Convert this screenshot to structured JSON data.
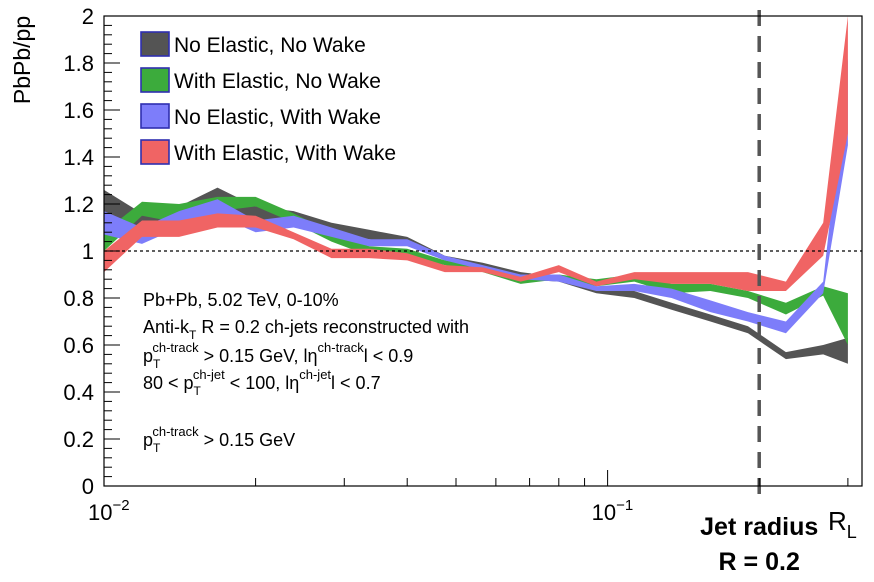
{
  "chart_data": {
    "type": "area",
    "title": "",
    "ylabel": "PbPb/pp",
    "xlabel_text": "R",
    "xlabel_sub": "L",
    "xscale": "log",
    "xlim": [
      0.01,
      0.32
    ],
    "ylim": [
      0,
      2
    ],
    "x_tick_labels": [
      {
        "value": 0.01,
        "base": "10",
        "exp": "−2"
      },
      {
        "value": 0.1,
        "base": "10",
        "exp": "−1"
      }
    ],
    "y_tick_labels": [
      "0",
      "0.2",
      "0.4",
      "0.6",
      "0.8",
      "1",
      "1.2",
      "1.4",
      "1.6",
      "1.8",
      "2"
    ],
    "y_tick_values": [
      0,
      0.2,
      0.4,
      0.6,
      0.8,
      1,
      1.2,
      1.4,
      1.6,
      1.8,
      2
    ],
    "reference_line": {
      "y": 1,
      "style": "dotted"
    },
    "jet_radius_line": {
      "x": 0.2,
      "label_line1": "Jet radius",
      "label_line2": "R = 0.2"
    },
    "x": [
      0.01,
      0.0119,
      0.0141,
      0.0168,
      0.02,
      0.0238,
      0.0283,
      0.0336,
      0.04,
      0.0475,
      0.0565,
      0.0672,
      0.08,
      0.095,
      0.113,
      0.134,
      0.16,
      0.19,
      0.226,
      0.268,
      0.3
    ],
    "series": [
      {
        "name": "No Elastic, No Wake",
        "color": "#545454",
        "low": [
          1.16,
          1.1,
          1.13,
          1.17,
          1.12,
          1.13,
          1.08,
          1.05,
          1.03,
          0.96,
          0.93,
          0.88,
          0.87,
          0.82,
          0.8,
          0.75,
          0.7,
          0.65,
          0.54,
          0.56,
          0.52
        ],
        "high": [
          1.26,
          1.16,
          1.19,
          1.27,
          1.19,
          1.17,
          1.12,
          1.09,
          1.06,
          0.98,
          0.95,
          0.91,
          0.89,
          0.84,
          0.83,
          0.78,
          0.73,
          0.68,
          0.57,
          0.6,
          0.63
        ]
      },
      {
        "name": "With Elastic, No Wake",
        "color": "#3cab3c",
        "low": [
          1.0,
          1.15,
          1.12,
          1.17,
          1.19,
          1.12,
          1.04,
          0.98,
          0.98,
          0.94,
          0.91,
          0.86,
          0.88,
          0.85,
          0.87,
          0.82,
          0.83,
          0.8,
          0.73,
          0.81,
          0.6
        ],
        "high": [
          1.08,
          1.21,
          1.2,
          1.23,
          1.23,
          1.16,
          1.08,
          1.02,
          1.01,
          0.96,
          0.93,
          0.88,
          0.9,
          0.88,
          0.9,
          0.86,
          0.86,
          0.83,
          0.78,
          0.85,
          0.82
        ]
      },
      {
        "name": "No Elastic, With Wake",
        "color": "#7d7dfa",
        "low": [
          1.07,
          1.03,
          1.1,
          1.15,
          1.08,
          1.1,
          1.06,
          1.02,
          1.02,
          0.96,
          0.92,
          0.88,
          0.87,
          0.83,
          0.83,
          0.8,
          0.74,
          0.7,
          0.65,
          0.82,
          1.45
        ],
        "high": [
          1.17,
          1.1,
          1.17,
          1.22,
          1.13,
          1.15,
          1.1,
          1.05,
          1.05,
          0.98,
          0.94,
          0.9,
          0.9,
          0.85,
          0.86,
          0.84,
          0.79,
          0.74,
          0.7,
          0.87,
          1.82
        ]
      },
      {
        "name": "With Elastic, With Wake",
        "color": "#f06464",
        "low": [
          0.91,
          1.06,
          1.06,
          1.1,
          1.1,
          1.05,
          0.97,
          0.97,
          0.96,
          0.91,
          0.91,
          0.87,
          0.91,
          0.85,
          0.88,
          0.86,
          0.86,
          0.83,
          0.83,
          0.98,
          1.5
        ],
        "high": [
          1.0,
          1.13,
          1.13,
          1.16,
          1.15,
          1.08,
          1.01,
          1.01,
          0.99,
          0.94,
          0.93,
          0.89,
          0.94,
          0.87,
          0.91,
          0.91,
          0.91,
          0.91,
          0.87,
          1.12,
          2.0
        ]
      }
    ],
    "legend_position": "top-left",
    "annotations": {
      "line1": "Pb+Pb, 5.02 TeV, 0-10%",
      "line2_pre": "Anti-k",
      "line2_sub": "T",
      "line2_post": " R = 0.2 ch-jets reconstructed with",
      "line3_p": "p",
      "line3_sub": "T",
      "line3_sup": "ch-track",
      "line3_mid": " > 0.15 GeV, lη",
      "line3_sup2": "ch-track",
      "line3_end": "l < 0.9",
      "line4_pre": "80 < p",
      "line4_sub": "T",
      "line4_sup": "ch-jet",
      "line4_mid": " < 100, lη",
      "line4_sup2": "ch-jet",
      "line4_end": "l < 0.7",
      "line5_p": "p",
      "line5_sub": "T",
      "line5_sup": "ch-track",
      "line5_end": " > 0.15 GeV"
    }
  }
}
